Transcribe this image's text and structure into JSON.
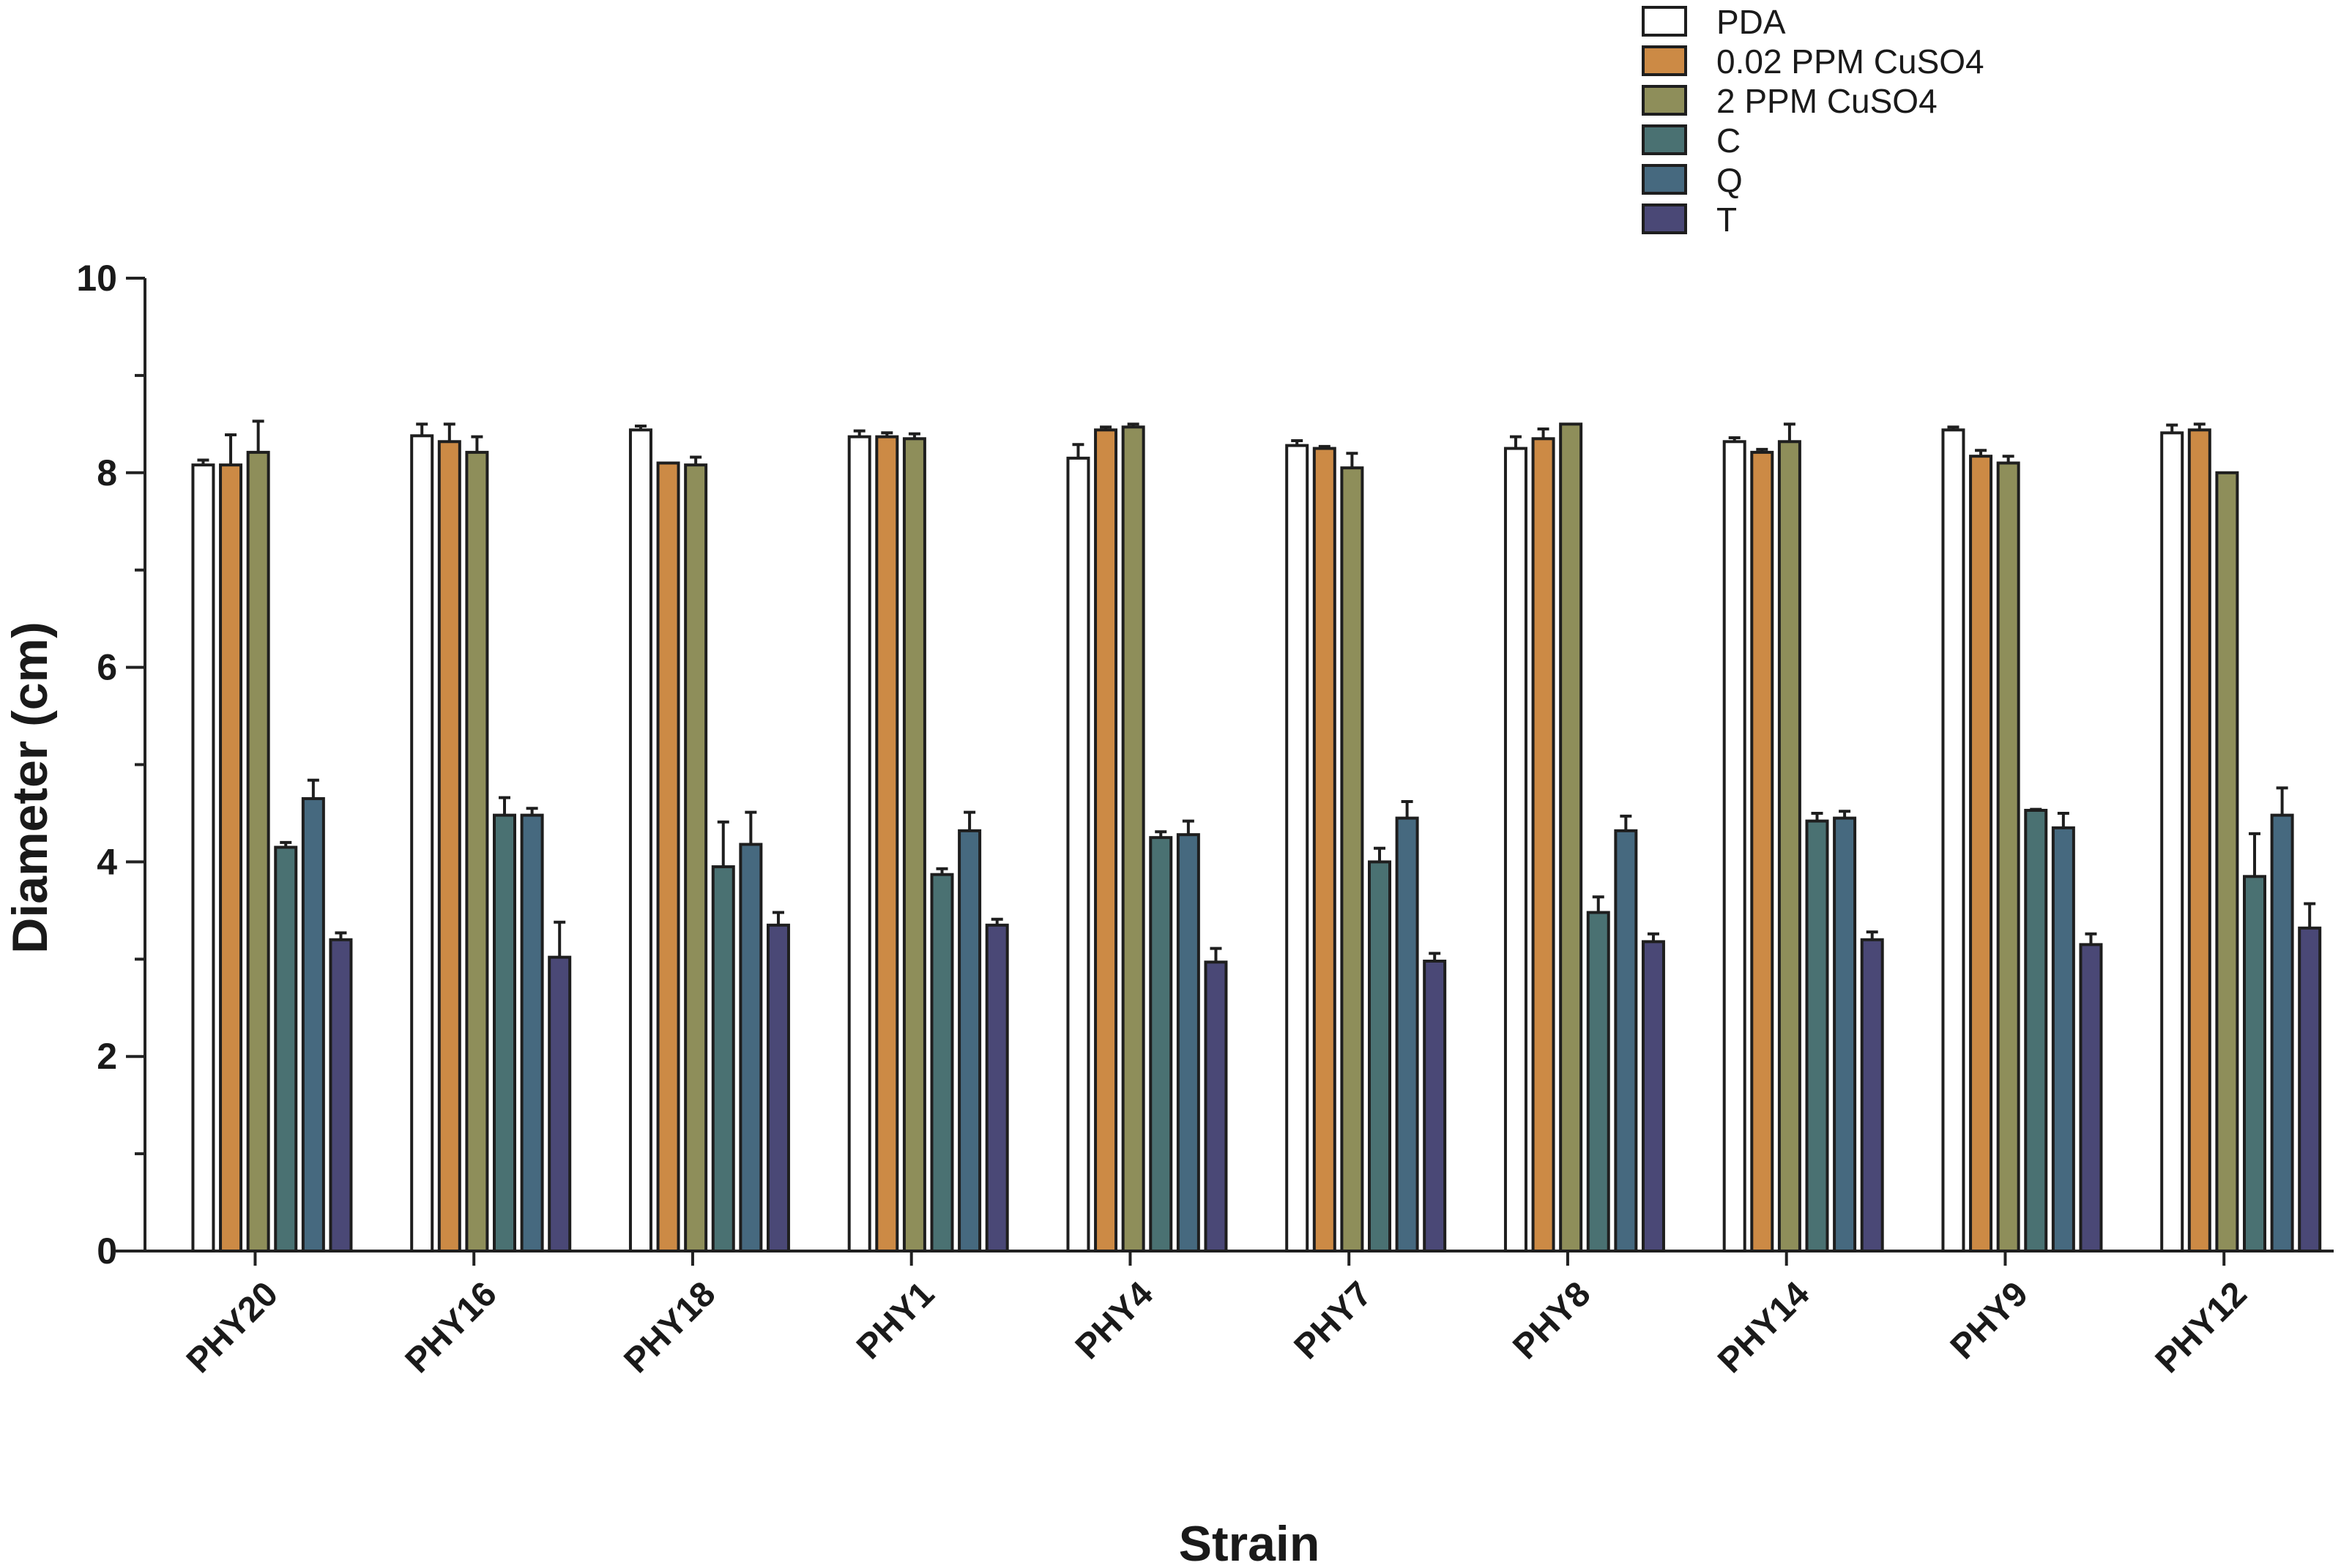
{
  "chart_data": {
    "type": "bar",
    "title": "",
    "xlabel": "Strain",
    "ylabel": "Diameter (cm)",
    "ylim": [
      0,
      10
    ],
    "yticks": [
      0,
      2,
      4,
      6,
      8,
      10
    ],
    "grid": false,
    "legend_position": "top-right",
    "categories": [
      "PHY20",
      "PHY16",
      "PHY18",
      "PHY1",
      "PHY4",
      "PHY7",
      "PHY8",
      "PHY14",
      "PHY9",
      "PHY12"
    ],
    "series": [
      {
        "name": "PDA",
        "color": "#ffffff",
        "values": [
          8.08,
          8.38,
          8.44,
          8.37,
          8.15,
          8.28,
          8.25,
          8.32,
          8.44,
          8.41
        ],
        "errors": [
          0.05,
          0.12,
          0.04,
          0.06,
          0.14,
          0.05,
          0.12,
          0.04,
          0.03,
          0.08
        ]
      },
      {
        "name": "0.02 PPM CuSO4",
        "color": "#cc8a45",
        "values": [
          8.08,
          8.32,
          8.1,
          8.37,
          8.44,
          8.25,
          8.35,
          8.21,
          8.17,
          8.44
        ],
        "errors": [
          0.31,
          0.18,
          0.0,
          0.04,
          0.03,
          0.02,
          0.1,
          0.03,
          0.06,
          0.06
        ]
      },
      {
        "name": "2 PPM CuSO4",
        "color": "#8e8e5a",
        "values": [
          8.21,
          8.21,
          8.08,
          8.35,
          8.47,
          8.05,
          8.5,
          8.32,
          8.1,
          8.0
        ],
        "errors": [
          0.32,
          0.16,
          0.08,
          0.05,
          0.03,
          0.15,
          0.0,
          0.18,
          0.07,
          0.0
        ]
      },
      {
        "name": "C",
        "color": "#4a7172",
        "values": [
          4.15,
          4.48,
          3.95,
          3.87,
          4.25,
          4.0,
          3.48,
          4.42,
          4.53,
          3.85
        ],
        "errors": [
          0.05,
          0.18,
          0.46,
          0.06,
          0.06,
          0.14,
          0.16,
          0.08,
          0.01,
          0.44
        ]
      },
      {
        "name": "Q",
        "color": "#46697f",
        "values": [
          4.65,
          4.48,
          4.18,
          4.32,
          4.28,
          4.45,
          4.32,
          4.45,
          4.35,
          4.48
        ],
        "errors": [
          0.19,
          0.07,
          0.33,
          0.19,
          0.14,
          0.17,
          0.15,
          0.07,
          0.15,
          0.28
        ]
      },
      {
        "name": "T",
        "color": "#4a4876",
        "values": [
          3.2,
          3.02,
          3.35,
          3.35,
          2.97,
          2.98,
          3.18,
          3.2,
          3.15,
          3.32
        ],
        "errors": [
          0.07,
          0.36,
          0.13,
          0.06,
          0.14,
          0.08,
          0.08,
          0.08,
          0.11,
          0.25
        ]
      }
    ]
  }
}
